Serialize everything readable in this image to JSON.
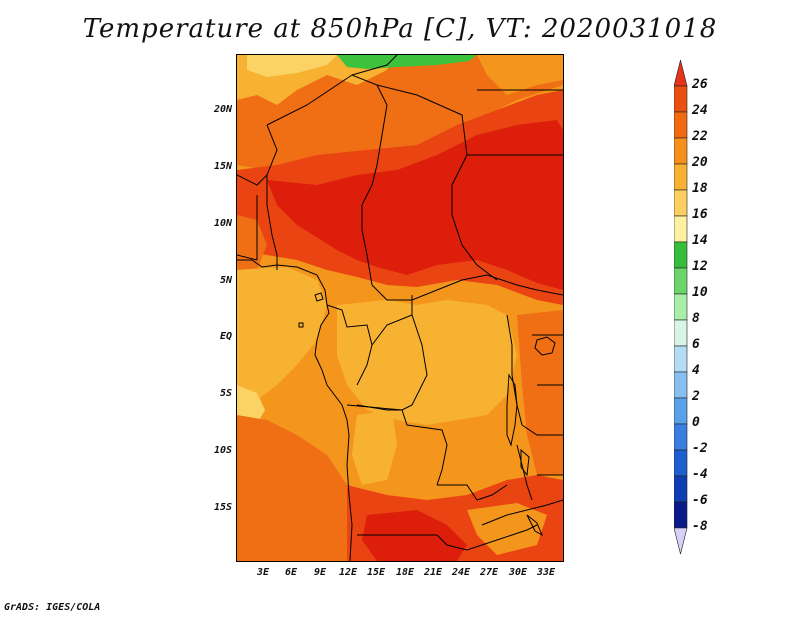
{
  "title": "Temperature at 850hPa [C], VT: 2020031018",
  "credit": "GrADS: IGES/COLA",
  "lat_labels": [
    "20N",
    "15N",
    "10N",
    "5N",
    "EQ",
    "5S",
    "10S",
    "15S"
  ],
  "lon_labels": [
    "3E",
    "6E",
    "9E",
    "12E",
    "15E",
    "18E",
    "21E",
    "24E",
    "27E",
    "30E",
    "33E"
  ],
  "colorbar": {
    "labels": [
      "26",
      "24",
      "22",
      "20",
      "18",
      "16",
      "14",
      "12",
      "10",
      "8",
      "6",
      "4",
      "2",
      "0",
      "-2",
      "-4",
      "-6",
      "-8"
    ],
    "colors": [
      "#e8321a",
      "#ea4f12",
      "#f26a10",
      "#f5901a",
      "#f9b133",
      "#fbd061",
      "#fdf0a0",
      "#36be3a",
      "#6ad66a",
      "#a8eea8",
      "#d8f4e6",
      "#b4dcf4",
      "#86bff0",
      "#5aa0ea",
      "#3a7fe0",
      "#1d5fd0",
      "#0e3eb4",
      "#0a1a88",
      "#d8d0f8"
    ]
  },
  "map_colors": {
    "t26": "#dc1e0a",
    "t24": "#ea4412",
    "t22": "#f06e14",
    "t20": "#f5961c",
    "t18": "#f8b232",
    "t16": "#fbd264",
    "t14": "#fcee9c",
    "t12": "#3cc23c"
  }
}
